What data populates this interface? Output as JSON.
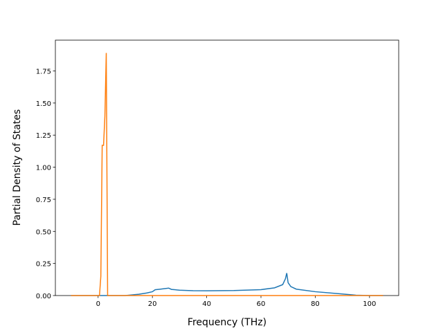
{
  "chart_data": {
    "type": "line",
    "x_label": "Frequency (THz)",
    "y_label": "Partial Density of States",
    "xlim": [
      -15.75,
      110.75
    ],
    "ylim": [
      0,
      1.99
    ],
    "xticks": [
      0,
      20,
      40,
      60,
      80,
      100
    ],
    "yticks": [
      {
        "value": 0,
        "label": "0.00"
      },
      {
        "value": 0.25,
        "label": "0.25"
      },
      {
        "value": 0.5,
        "label": "0.50"
      },
      {
        "value": 0.75,
        "label": "0.75"
      },
      {
        "value": 1.0,
        "label": "1.00"
      },
      {
        "value": 1.25,
        "label": "1.25"
      },
      {
        "value": 1.5,
        "label": "1.50"
      },
      {
        "value": 1.75,
        "label": "1.75"
      }
    ],
    "series": [
      {
        "color": "#1f77b4",
        "x": [
          -10,
          10,
          15,
          18,
          20,
          21,
          23,
          26,
          27,
          30,
          35,
          40,
          50,
          60,
          65,
          68,
          69,
          69.5,
          70,
          71,
          73,
          80,
          90,
          95,
          100,
          105
        ],
        "values": [
          0,
          0,
          0.01,
          0.02,
          0.03,
          0.045,
          0.05,
          0.058,
          0.048,
          0.042,
          0.038,
          0.037,
          0.039,
          0.046,
          0.06,
          0.085,
          0.13,
          0.175,
          0.1,
          0.07,
          0.05,
          0.03,
          0.012,
          0.003,
          0,
          0
        ]
      },
      {
        "color": "#ff7f0e",
        "x": [
          -10,
          0.5,
          1,
          1.5,
          2,
          2.5,
          3,
          3.5,
          4,
          105
        ],
        "values": [
          0,
          0,
          0.15,
          1.17,
          1.17,
          1.4,
          1.89,
          0,
          0,
          0
        ]
      }
    ]
  }
}
